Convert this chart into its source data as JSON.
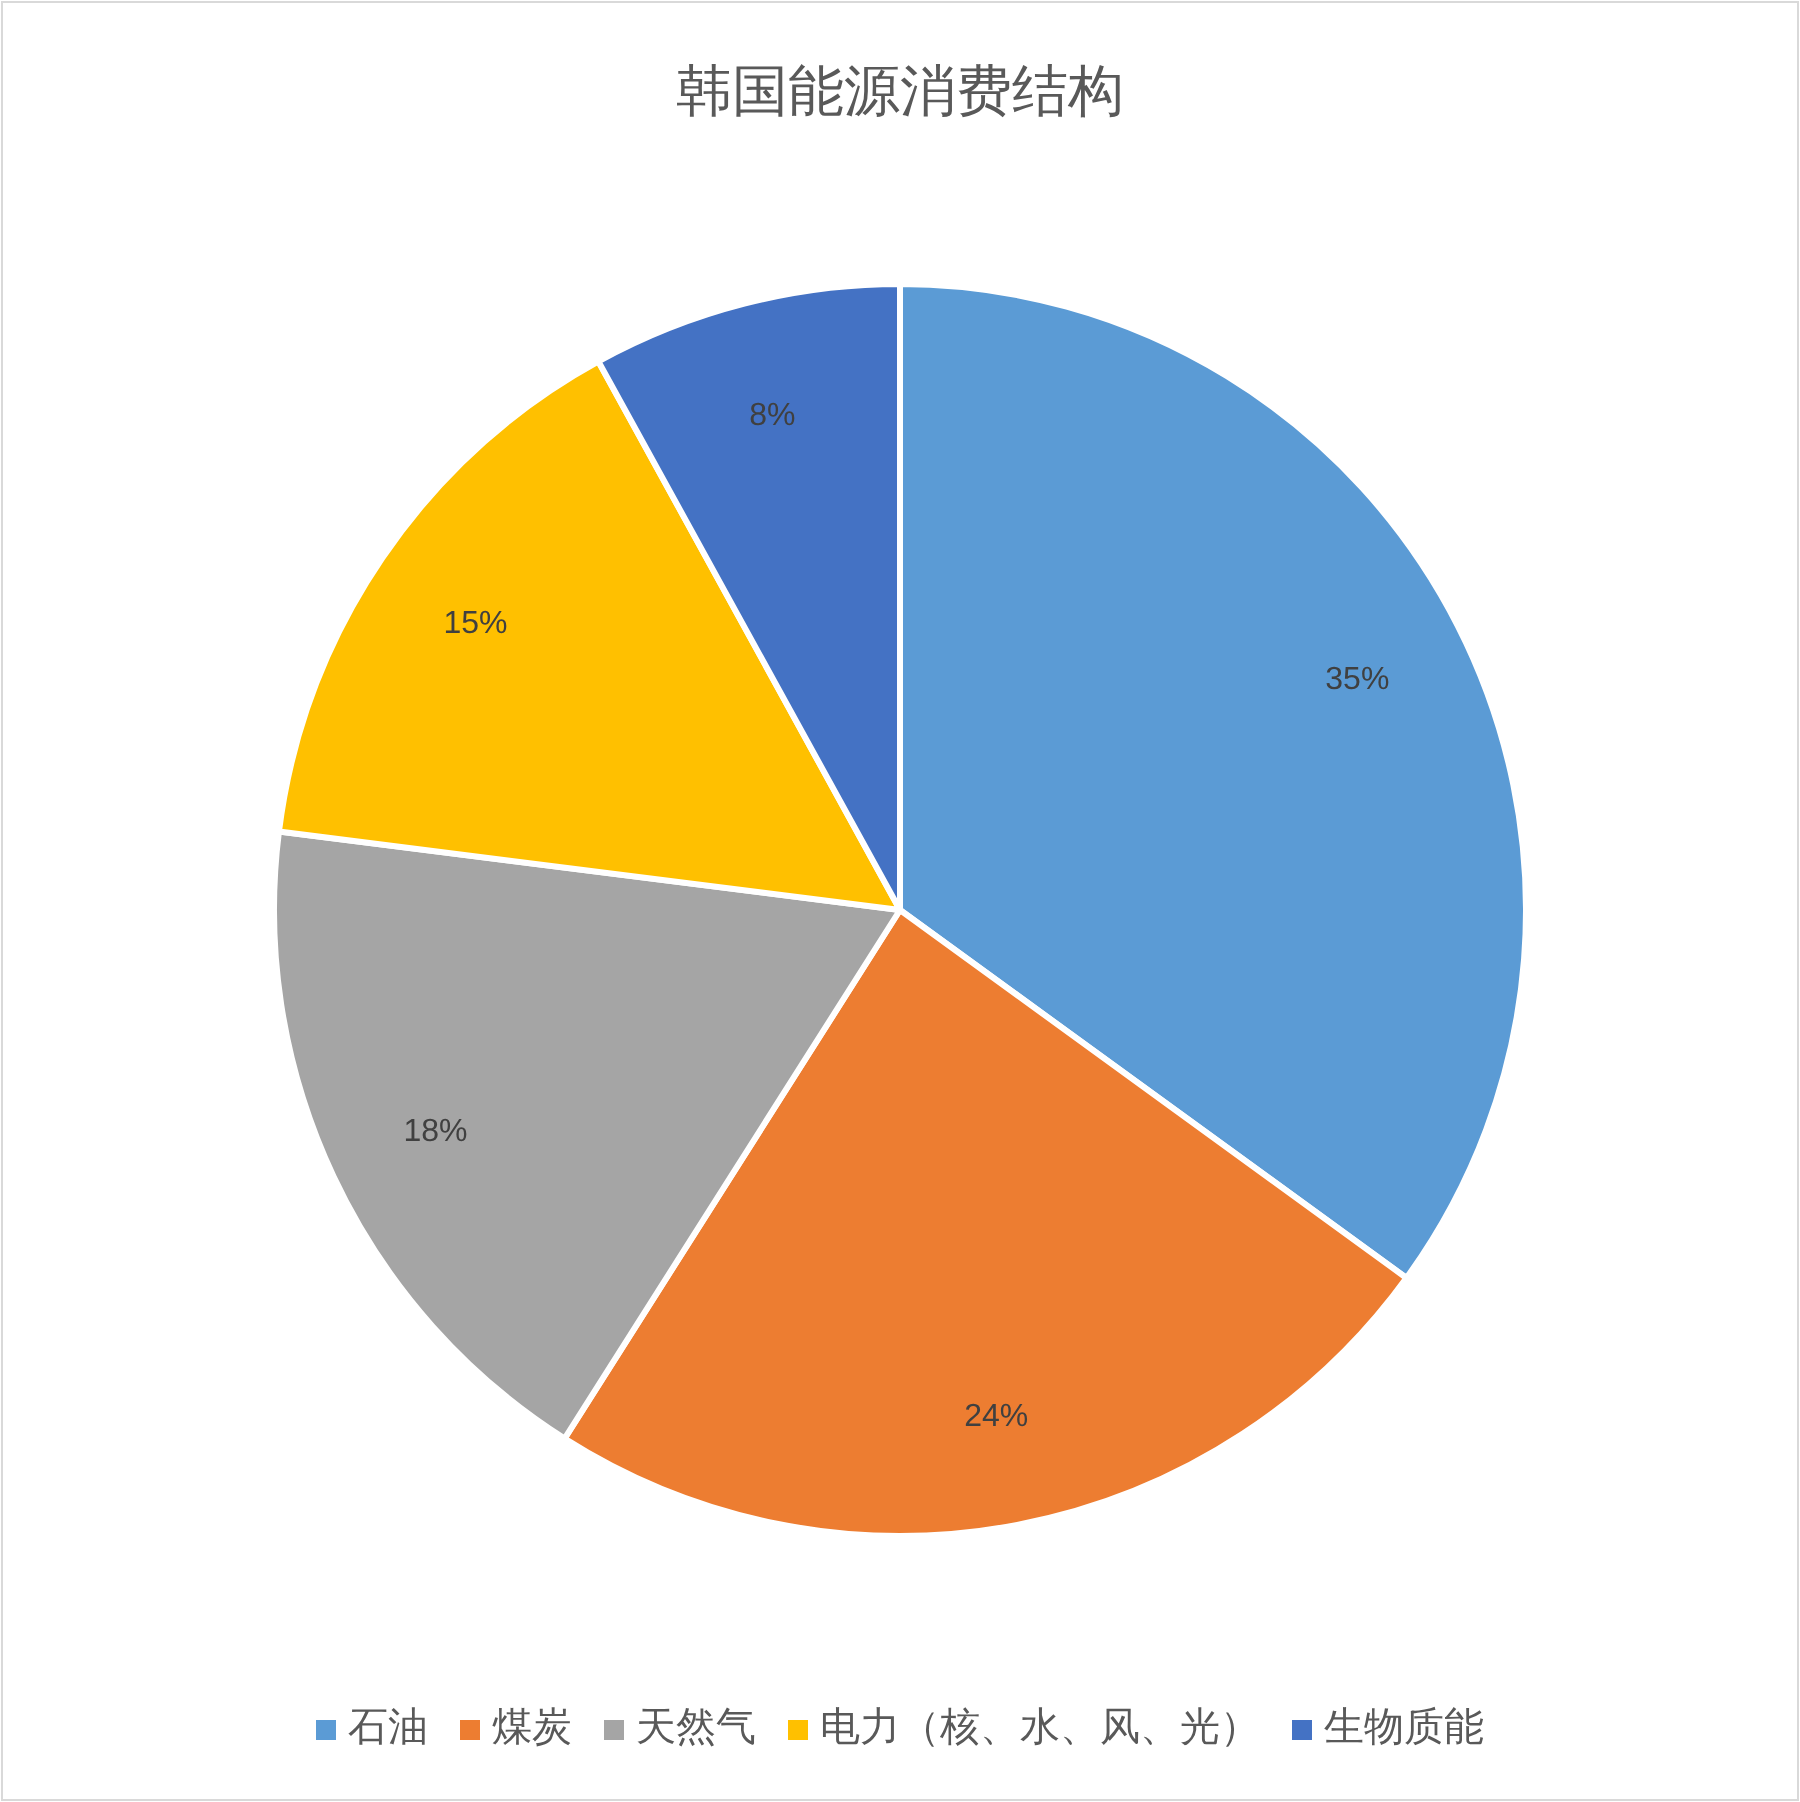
{
  "chart_data": {
    "type": "pie",
    "title": "韩国能源消费结构",
    "categories": [
      "石油",
      "煤炭",
      "天然气",
      "电力（核、水、风、光）",
      "生物质能"
    ],
    "values": [
      35,
      24,
      18,
      15,
      8
    ],
    "colors": [
      "#5b9bd5",
      "#ed7d31",
      "#a5a5a5",
      "#ffc000",
      "#4472c4"
    ],
    "value_labels": [
      "35%",
      "24%",
      "18%",
      "15%",
      "8%"
    ],
    "legend": "bottom"
  }
}
